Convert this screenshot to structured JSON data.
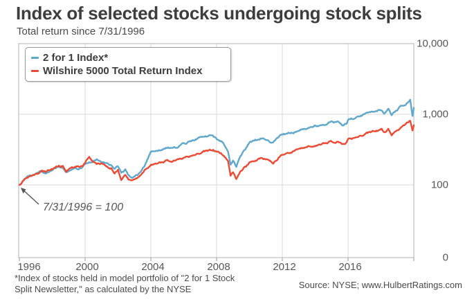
{
  "header": {
    "title": "Index of selected stocks undergoing stock splits",
    "subtitle": "Total return since 7/31/1996"
  },
  "legend": {
    "items": [
      {
        "label": "2 for 1 Index*",
        "color": "#5FA8CD"
      },
      {
        "label": "Wilshire 5000 Total Return Index",
        "color": "#ED4A33"
      }
    ]
  },
  "annotation": {
    "text": "7/31/1996 = 100"
  },
  "footnote": {
    "line1": "*Index of stocks held in model portfolio of \"2 for 1 Stock",
    "line2": "Split Newsletter,\" as calculated by the NYSE"
  },
  "source": "Source: NYSE; www.HulbertRatings.com",
  "colors": {
    "blue_line": "#5FA8CD",
    "red_line": "#ED4A33",
    "grid": "#d8d8d8",
    "plot_border": "#b3b3b3",
    "tick": "#9a9a9a",
    "text_dark": "#3d3d3d",
    "text_axis": "#565656"
  },
  "chart_data": {
    "type": "line",
    "title": "Index of selected stocks undergoing stock splits",
    "subtitle": "Total return since 7/31/1996",
    "base_note": "7/31/1996 = 100",
    "x_axis": {
      "ticks": [
        1996,
        2000,
        2004,
        2008,
        2012,
        2016
      ],
      "range": [
        1996,
        2020
      ],
      "gridline_years": [
        2000,
        2004,
        2008,
        2012,
        2016
      ]
    },
    "y_axis": {
      "scale": "log",
      "position": "right",
      "ticks": [
        {
          "label": "10,000",
          "value": 10000
        },
        {
          "label": "1,000",
          "value": 1000
        },
        {
          "label": "100",
          "value": 100
        },
        {
          "label": "0",
          "value": 0
        }
      ],
      "gridline_values": [
        1000,
        100
      ]
    },
    "legend_position": "top-left",
    "grid": true,
    "series": [
      {
        "name": "2 for 1 Index*",
        "color": "#5FA8CD",
        "points": [
          [
            1996.0,
            100
          ],
          [
            1996.2,
            112
          ],
          [
            1996.5,
            128
          ],
          [
            1996.8,
            136
          ],
          [
            1997.0,
            140
          ],
          [
            1997.3,
            152
          ],
          [
            1997.6,
            147
          ],
          [
            1998.0,
            163
          ],
          [
            1998.4,
            178
          ],
          [
            1998.65,
            180
          ],
          [
            1998.85,
            150
          ],
          [
            1999.2,
            172
          ],
          [
            1999.5,
            176
          ],
          [
            1999.8,
            172
          ],
          [
            2000.1,
            204
          ],
          [
            2000.45,
            215
          ],
          [
            2000.7,
            236
          ],
          [
            2001.0,
            215
          ],
          [
            2001.3,
            196
          ],
          [
            2001.6,
            185
          ],
          [
            2001.8,
            164
          ],
          [
            2002.0,
            180
          ],
          [
            2002.2,
            140
          ],
          [
            2002.45,
            157
          ],
          [
            2002.7,
            131
          ],
          [
            2002.9,
            128
          ],
          [
            2003.2,
            140
          ],
          [
            2003.6,
            190
          ],
          [
            2004.0,
            296
          ],
          [
            2004.5,
            305
          ],
          [
            2005.0,
            335
          ],
          [
            2005.5,
            345
          ],
          [
            2006.0,
            385
          ],
          [
            2006.5,
            420
          ],
          [
            2007.0,
            465
          ],
          [
            2007.6,
            497
          ],
          [
            2008.0,
            450
          ],
          [
            2008.4,
            400
          ],
          [
            2008.7,
            310
          ],
          [
            2008.85,
            201
          ],
          [
            2009.0,
            228
          ],
          [
            2009.2,
            184
          ],
          [
            2009.45,
            250
          ],
          [
            2009.8,
            330
          ],
          [
            2010.0,
            395
          ],
          [
            2010.4,
            430
          ],
          [
            2010.8,
            465
          ],
          [
            2011.2,
            420
          ],
          [
            2011.45,
            390
          ],
          [
            2011.6,
            430
          ],
          [
            2012.0,
            520
          ],
          [
            2012.5,
            540
          ],
          [
            2013.0,
            590
          ],
          [
            2013.5,
            640
          ],
          [
            2014.0,
            680
          ],
          [
            2014.6,
            720
          ],
          [
            2015.0,
            780
          ],
          [
            2015.4,
            790
          ],
          [
            2015.65,
            720
          ],
          [
            2015.9,
            760
          ],
          [
            2016.0,
            860
          ],
          [
            2016.4,
            900
          ],
          [
            2017.0,
            1010
          ],
          [
            2017.5,
            1090
          ],
          [
            2018.05,
            1180
          ],
          [
            2018.2,
            1060
          ],
          [
            2018.45,
            1230
          ],
          [
            2018.65,
            1000
          ],
          [
            2019.0,
            1180
          ],
          [
            2019.3,
            1340
          ],
          [
            2019.6,
            1480
          ],
          [
            2019.78,
            1620
          ],
          [
            2019.92,
            950
          ],
          [
            2020.0,
            1230
          ]
        ]
      },
      {
        "name": "Wilshire 5000 Total Return Index",
        "color": "#ED4A33",
        "points": [
          [
            1996.0,
            100
          ],
          [
            1996.2,
            114
          ],
          [
            1996.5,
            130
          ],
          [
            1996.8,
            139
          ],
          [
            1997.0,
            143
          ],
          [
            1997.3,
            155
          ],
          [
            1997.6,
            150
          ],
          [
            1998.0,
            168
          ],
          [
            1998.4,
            185
          ],
          [
            1998.65,
            188
          ],
          [
            1998.85,
            155
          ],
          [
            1999.2,
            180
          ],
          [
            1999.5,
            184
          ],
          [
            1999.8,
            180
          ],
          [
            2000.1,
            228
          ],
          [
            2000.25,
            250
          ],
          [
            2000.5,
            215
          ],
          [
            2000.7,
            195
          ],
          [
            2001.0,
            205
          ],
          [
            2001.3,
            185
          ],
          [
            2001.6,
            175
          ],
          [
            2001.8,
            150
          ],
          [
            2002.0,
            165
          ],
          [
            2002.2,
            122
          ],
          [
            2002.45,
            140
          ],
          [
            2002.7,
            118
          ],
          [
            2002.9,
            115
          ],
          [
            2003.2,
            125
          ],
          [
            2003.6,
            160
          ],
          [
            2004.0,
            200
          ],
          [
            2004.5,
            208
          ],
          [
            2005.0,
            220
          ],
          [
            2005.5,
            228
          ],
          [
            2006.0,
            245
          ],
          [
            2006.5,
            262
          ],
          [
            2007.0,
            285
          ],
          [
            2007.8,
            310
          ],
          [
            2008.0,
            295
          ],
          [
            2008.4,
            270
          ],
          [
            2008.7,
            220
          ],
          [
            2008.85,
            135
          ],
          [
            2009.0,
            152
          ],
          [
            2009.2,
            125
          ],
          [
            2009.45,
            155
          ],
          [
            2009.8,
            185
          ],
          [
            2010.0,
            210
          ],
          [
            2010.4,
            225
          ],
          [
            2010.8,
            240
          ],
          [
            2011.2,
            225
          ],
          [
            2011.45,
            210
          ],
          [
            2011.6,
            225
          ],
          [
            2012.0,
            277
          ],
          [
            2012.5,
            290
          ],
          [
            2013.0,
            320
          ],
          [
            2013.5,
            350
          ],
          [
            2014.0,
            370
          ],
          [
            2014.6,
            395
          ],
          [
            2015.0,
            410
          ],
          [
            2015.4,
            420
          ],
          [
            2015.65,
            380
          ],
          [
            2015.9,
            400
          ],
          [
            2016.0,
            450
          ],
          [
            2016.4,
            470
          ],
          [
            2017.0,
            520
          ],
          [
            2017.5,
            560
          ],
          [
            2018.05,
            610
          ],
          [
            2018.2,
            550
          ],
          [
            2018.45,
            630
          ],
          [
            2018.65,
            510
          ],
          [
            2019.0,
            600
          ],
          [
            2019.3,
            680
          ],
          [
            2019.6,
            750
          ],
          [
            2019.78,
            830
          ],
          [
            2019.92,
            590
          ],
          [
            2020.0,
            700
          ]
        ]
      }
    ]
  }
}
